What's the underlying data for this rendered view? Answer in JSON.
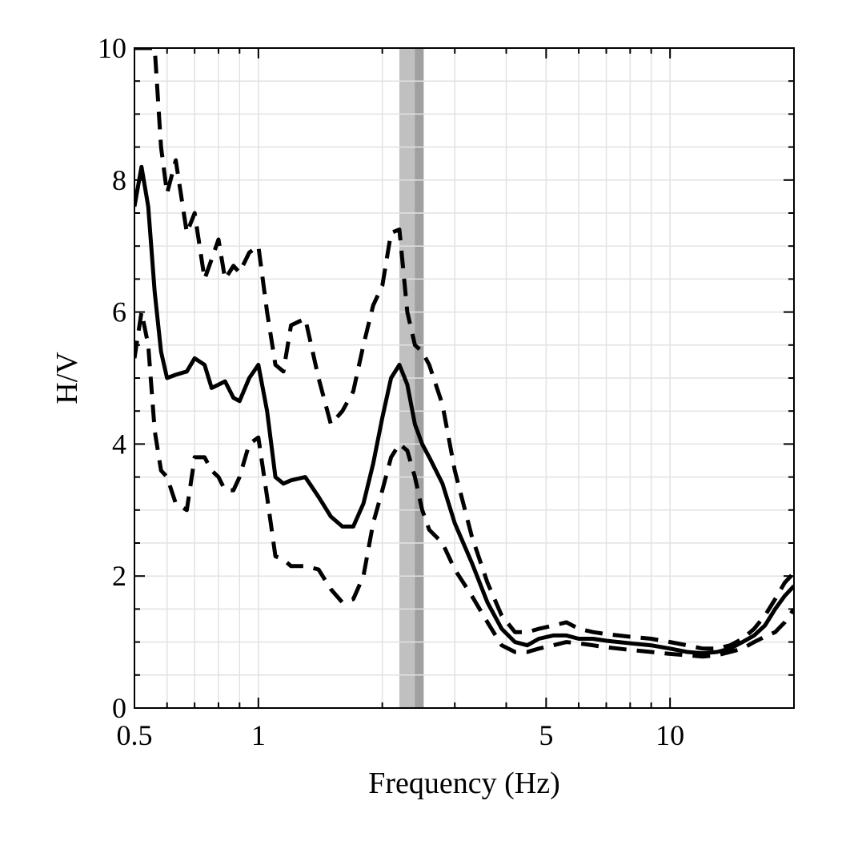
{
  "chart_data": {
    "type": "line",
    "title": "",
    "xlabel": "Frequency (Hz)",
    "ylabel": "H/V",
    "xscale": "log",
    "xlim": [
      0.5,
      20
    ],
    "ylim": [
      0,
      10
    ],
    "xticks": [
      {
        "value": 0.5,
        "label": "0.5"
      },
      {
        "value": 1,
        "label": "1"
      },
      {
        "value": 5,
        "label": "5"
      },
      {
        "value": 10,
        "label": "10"
      }
    ],
    "yticks": [
      {
        "value": 0,
        "label": "0"
      },
      {
        "value": 2,
        "label": "2"
      },
      {
        "value": 4,
        "label": "4"
      },
      {
        "value": 6,
        "label": "6"
      },
      {
        "value": 8,
        "label": "8"
      },
      {
        "value": 10,
        "label": "10"
      }
    ],
    "grid": true,
    "bands": [
      {
        "x0": 2.2,
        "x1": 2.52,
        "color": "#c0c0c0"
      },
      {
        "x0": 2.4,
        "x1": 2.52,
        "color": "#a0a0a0"
      }
    ],
    "series": [
      {
        "style": "solid",
        "x": [
          0.5,
          0.52,
          0.54,
          0.56,
          0.58,
          0.6,
          0.63,
          0.67,
          0.7,
          0.74,
          0.77,
          0.8,
          0.83,
          0.87,
          0.9,
          0.95,
          1.0,
          1.05,
          1.1,
          1.15,
          1.2,
          1.3,
          1.4,
          1.5,
          1.6,
          1.7,
          1.8,
          1.9,
          2.0,
          2.1,
          2.2,
          2.3,
          2.4,
          2.5,
          2.6,
          2.8,
          3.0,
          3.3,
          3.6,
          3.9,
          4.2,
          4.5,
          4.8,
          5.2,
          5.6,
          6.0,
          6.5,
          7.0,
          7.5,
          8.0,
          9.0,
          10.0,
          11.0,
          12.0,
          13.0,
          14.0,
          15.0,
          16.0,
          17.0,
          18.0,
          19.0,
          20.0
        ],
        "y": [
          7.6,
          8.2,
          7.6,
          6.3,
          5.4,
          5.0,
          5.05,
          5.1,
          5.3,
          5.2,
          4.85,
          4.9,
          4.95,
          4.7,
          4.65,
          5.0,
          5.2,
          4.5,
          3.5,
          3.4,
          3.45,
          3.5,
          3.2,
          2.9,
          2.75,
          2.75,
          3.1,
          3.7,
          4.4,
          5.0,
          5.2,
          4.9,
          4.3,
          4.0,
          3.8,
          3.4,
          2.8,
          2.2,
          1.6,
          1.2,
          1.0,
          0.95,
          1.05,
          1.1,
          1.1,
          1.05,
          1.05,
          1.02,
          1.0,
          0.98,
          0.95,
          0.9,
          0.85,
          0.83,
          0.85,
          0.9,
          1.0,
          1.1,
          1.25,
          1.5,
          1.7,
          1.85
        ]
      },
      {
        "style": "dashed",
        "x": [
          0.5,
          0.52,
          0.54,
          0.56,
          0.58,
          0.6,
          0.63,
          0.67,
          0.7,
          0.74,
          0.77,
          0.8,
          0.83,
          0.87,
          0.9,
          0.95,
          1.0,
          1.05,
          1.1,
          1.15,
          1.2,
          1.3,
          1.4,
          1.5,
          1.6,
          1.7,
          1.8,
          1.9,
          2.0,
          2.1,
          2.2,
          2.3,
          2.4,
          2.5,
          2.6,
          2.8,
          3.0,
          3.3,
          3.6,
          3.9,
          4.2,
          4.5,
          4.8,
          5.2,
          5.6,
          6.0,
          6.5,
          7.0,
          7.5,
          8.0,
          9.0,
          10.0,
          11.0,
          12.0,
          13.0,
          14.0,
          15.0,
          16.0,
          17.0,
          18.0,
          19.0,
          20.0
        ],
        "y": [
          10.0,
          10.0,
          10.0,
          10.0,
          8.5,
          7.8,
          8.3,
          7.2,
          7.5,
          6.5,
          6.8,
          7.1,
          6.5,
          6.7,
          6.6,
          6.9,
          7.0,
          6.0,
          5.2,
          5.1,
          5.8,
          5.9,
          5.0,
          4.3,
          4.5,
          4.8,
          5.5,
          6.1,
          6.4,
          7.2,
          7.25,
          6.0,
          5.5,
          5.4,
          5.2,
          4.6,
          3.6,
          2.6,
          1.9,
          1.4,
          1.15,
          1.15,
          1.2,
          1.25,
          1.3,
          1.2,
          1.15,
          1.12,
          1.1,
          1.08,
          1.05,
          1.0,
          0.95,
          0.9,
          0.9,
          0.95,
          1.05,
          1.2,
          1.4,
          1.65,
          1.9,
          2.05
        ]
      },
      {
        "style": "dashed",
        "x": [
          0.5,
          0.52,
          0.54,
          0.56,
          0.58,
          0.6,
          0.63,
          0.67,
          0.7,
          0.74,
          0.77,
          0.8,
          0.83,
          0.87,
          0.9,
          0.95,
          1.0,
          1.05,
          1.1,
          1.15,
          1.2,
          1.3,
          1.4,
          1.5,
          1.6,
          1.7,
          1.8,
          1.9,
          2.0,
          2.1,
          2.2,
          2.3,
          2.4,
          2.5,
          2.6,
          2.8,
          3.0,
          3.3,
          3.6,
          3.9,
          4.2,
          4.5,
          4.8,
          5.2,
          5.6,
          6.0,
          6.5,
          7.0,
          7.5,
          8.0,
          9.0,
          10.0,
          11.0,
          12.0,
          13.0,
          14.0,
          15.0,
          16.0,
          17.0,
          18.0,
          19.0,
          20.0
        ],
        "y": [
          5.3,
          6.0,
          5.5,
          4.2,
          3.6,
          3.5,
          3.1,
          3.0,
          3.8,
          3.8,
          3.6,
          3.5,
          3.3,
          3.3,
          3.5,
          4.0,
          4.1,
          3.2,
          2.3,
          2.25,
          2.15,
          2.15,
          2.1,
          1.8,
          1.6,
          1.65,
          2.0,
          2.8,
          3.3,
          3.8,
          4.0,
          3.9,
          3.5,
          3.0,
          2.7,
          2.5,
          2.1,
          1.7,
          1.3,
          0.95,
          0.85,
          0.85,
          0.9,
          0.95,
          1.0,
          0.98,
          0.95,
          0.92,
          0.9,
          0.88,
          0.85,
          0.82,
          0.8,
          0.78,
          0.8,
          0.85,
          0.9,
          1.0,
          1.08,
          1.15,
          1.3,
          1.5
        ]
      }
    ]
  }
}
